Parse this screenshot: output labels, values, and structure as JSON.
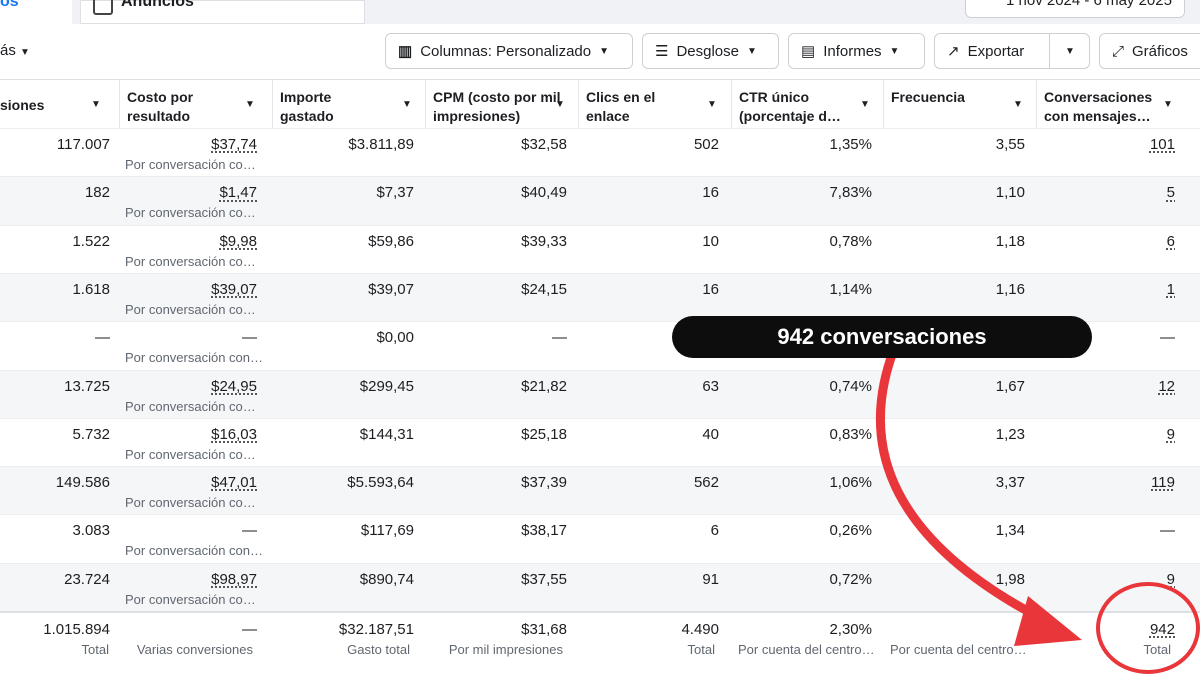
{
  "tabs": {
    "active": "os",
    "other": "Anuncios",
    "date": "1 nov 2024 - 6 may 2025"
  },
  "toolbar": {
    "left": "ás",
    "columns": "Columnas: Personalizado",
    "breakdown": "Desglose",
    "reports": "Informes",
    "export": "Exportar",
    "charts": "Gráficos"
  },
  "table": {
    "headers": [
      "siones",
      "Costo por resultado",
      "Importe gastado",
      "CPM (costo por mil impresiones)",
      "Clics en el enlace",
      "CTR único (porcentaje d…",
      "Frecuencia",
      "Conversaciones con mensajes…"
    ],
    "rows": [
      [
        "117.007",
        "$37,74",
        "$3.811,89",
        "$32,58",
        "502",
        "1,35%",
        "3,55",
        "101"
      ],
      [
        "182",
        "$1,47",
        "$7,37",
        "$40,49",
        "16",
        "7,83%",
        "1,10",
        "5"
      ],
      [
        "1.522",
        "$9,98",
        "$59,86",
        "$39,33",
        "10",
        "0,78%",
        "1,18",
        "6"
      ],
      [
        "1.618",
        "$39,07",
        "$39,07",
        "$24,15",
        "16",
        "1,14%",
        "1,16",
        "1"
      ],
      [
        "—",
        "—",
        "$0,00",
        "—",
        null,
        null,
        null,
        "—"
      ],
      [
        "13.725",
        "$24,95",
        "$299,45",
        "$21,82",
        "63",
        "0,74%",
        "1,67",
        "12"
      ],
      [
        "5.732",
        "$16,03",
        "$144,31",
        "$25,18",
        "40",
        "0,83%",
        "1,23",
        "9"
      ],
      [
        "149.586",
        "$47,01",
        "$5.593,64",
        "$37,39",
        "562",
        "1,06%",
        "3,37",
        "119"
      ],
      [
        "3.083",
        "—",
        "$117,69",
        "$38,17",
        "6",
        "0,26%",
        "1,34",
        "—"
      ],
      [
        "23.724",
        "$98,97",
        "$890,74",
        "$37,55",
        "91",
        "0,72%",
        "1,98",
        "9"
      ]
    ],
    "row_notes": [
      "Por conversación co…",
      "Por conversación co…",
      "Por conversación co…",
      "Por conversación co…",
      "Por conversación con…",
      "Por conversación co…",
      "Por conversación co…",
      "Por conversación co…",
      "Por conversación con…",
      "Por conversación co…"
    ],
    "totals": [
      "1.015.894",
      "—",
      "$32.187,51",
      "$31,68",
      "4.490",
      "2,30%",
      null,
      "942"
    ],
    "total_labels": [
      "Total",
      "Varias conversiones",
      "Gasto total",
      "Por mil impresiones",
      "Total",
      "Por cuenta del centro…",
      "Por cuenta del centro…",
      "Total"
    ]
  },
  "annotation": "942 conversaciones"
}
